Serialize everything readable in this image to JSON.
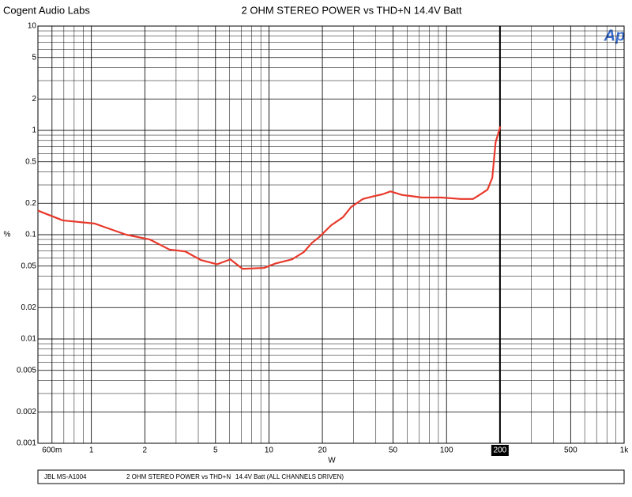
{
  "chart_data": {
    "type": "line",
    "header": "Cogent Audio Labs",
    "title": "2 OHM STEREO POWER vs THD+N   14.4V Batt",
    "x_label": "W",
    "y_label": "%",
    "logo": "Ap",
    "footer": [
      "JBL   MS-A1004",
      "2 OHM STEREO POWER  vs THD+N",
      "14.4V Batt  (ALL CHANNELS DRIVEN)"
    ],
    "xlog": true,
    "ylog": true,
    "grid": true,
    "xlim": [
      0.5,
      1000
    ],
    "ylim": [
      0.001,
      10
    ],
    "xticks": [
      {
        "value": 0.6,
        "label": "600m"
      },
      1,
      2,
      5,
      10,
      20,
      50,
      100,
      500,
      {
        "value": 1000,
        "label": "1k"
      }
    ],
    "yticks": [
      10,
      5,
      2,
      1,
      0.5,
      0.2,
      0.1,
      0.05,
      0.02,
      0.01,
      0.005,
      0.002,
      0.001
    ],
    "cursor_x": 200,
    "series": [
      {
        "name": "THD+N",
        "color": "#e8392b",
        "x": [
          0.5,
          0.69,
          1.04,
          1.57,
          2.13,
          2.75,
          3.38,
          4.15,
          5.1,
          6.06,
          7.1,
          9.4,
          10.9,
          13.5,
          15.7,
          17.4,
          19.2,
          22.4,
          26.1,
          29,
          33.8,
          39.4,
          43.6,
          48.3,
          56.4,
          62.5,
          72.8,
          93.8,
          120,
          141,
          153,
          170,
          181,
          189,
          201
        ],
        "values": [
          0.17,
          0.137,
          0.128,
          0.1,
          0.09,
          0.072,
          0.069,
          0.057,
          0.052,
          0.058,
          0.047,
          0.048,
          0.053,
          0.058,
          0.068,
          0.083,
          0.095,
          0.123,
          0.147,
          0.184,
          0.22,
          0.235,
          0.244,
          0.26,
          0.24,
          0.235,
          0.227,
          0.227,
          0.22,
          0.22,
          0.24,
          0.27,
          0.35,
          0.77,
          1.09
        ]
      }
    ]
  }
}
